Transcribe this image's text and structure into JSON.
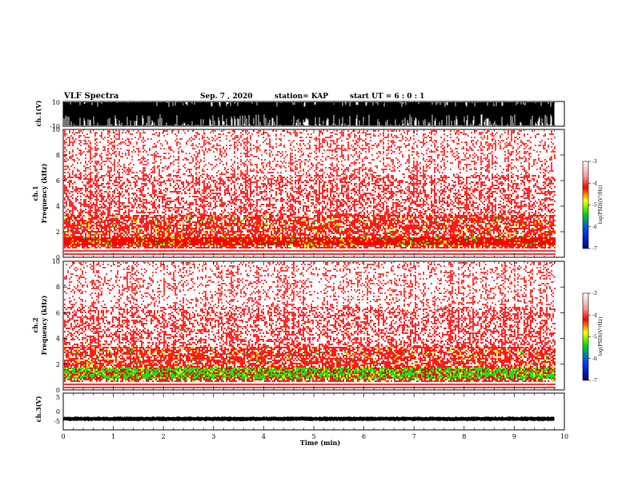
{
  "header": {
    "title": "VLF Spectra",
    "date": "Sep. 7 , 2020",
    "station": "station= KAP",
    "start_ut": "start UT =  6 : 0 : 1"
  },
  "chart_data": [
    {
      "type": "line",
      "panel": "ch1-waveform",
      "ylabel": "ch.1(V)",
      "ylim": [
        -10,
        10
      ],
      "y_ticks": [
        "10",
        "-10"
      ],
      "xlim": [
        0,
        10
      ],
      "trace_end_min": 9.8,
      "trace_color": "#000000",
      "description_values": "dense saturated waveform spanning about -10 to 10 V"
    },
    {
      "type": "heatmap",
      "panel": "ch1-spectrogram",
      "ylabel": "ch.1",
      "ylabel2": "Frequency  (kHz)",
      "ylim": [
        0,
        10
      ],
      "y_ticks": [
        "0",
        "2",
        "4",
        "6",
        "8",
        "10"
      ],
      "xlim": [
        0,
        10
      ],
      "data_end_min": 9.8,
      "strong_band_khz": [
        1.0,
        1.6
      ],
      "lowband_green_fraction": 0.05
    },
    {
      "type": "heatmap",
      "panel": "ch2-spectrogram",
      "ylabel": "ch.2",
      "ylabel2": "Frequency  (kHz)",
      "ylim": [
        0,
        10
      ],
      "y_ticks": [
        "0",
        "2",
        "4",
        "6",
        "8",
        "10"
      ],
      "xlim": [
        0,
        10
      ],
      "data_end_min": 9.8,
      "strong_band_khz": [
        0.9,
        1.8
      ],
      "lowband_green_fraction": 0.55
    },
    {
      "type": "line",
      "panel": "ch3-waveform",
      "ylabel": "ch.3(V)",
      "ylim": [
        -5,
        5
      ],
      "y_ticks": [
        "5",
        "0",
        "-5"
      ],
      "xlim": [
        0,
        10
      ],
      "trace_end_min": 9.8,
      "band_v": [
        -2.4,
        -1.6
      ]
    },
    {
      "type": "colorbar",
      "label": "log(PSD)(V²/Hz)",
      "range": [
        -7,
        -3
      ],
      "ticks": [
        "-3",
        "-4",
        "-5",
        "-6",
        "-7"
      ],
      "colors": [
        "#ffffff",
        "#ff0000",
        "#ffff00",
        "#00dd00",
        "#0000ff",
        "#000080"
      ]
    }
  ],
  "xaxis": {
    "label": "Time  (min)",
    "ticks": [
      "0",
      "1",
      "2",
      "3",
      "4",
      "5",
      "6",
      "7",
      "8",
      "9",
      "10"
    ]
  }
}
